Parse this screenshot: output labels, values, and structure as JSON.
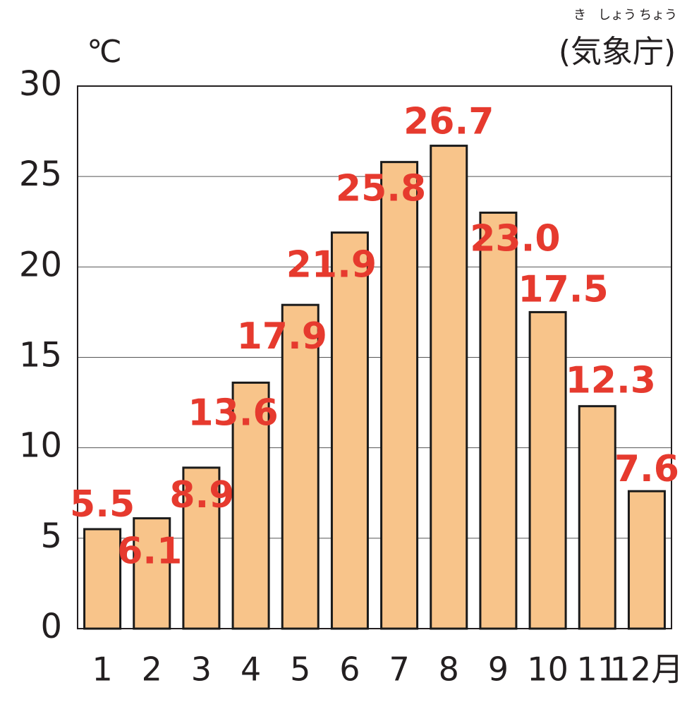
{
  "chart_data": {
    "type": "bar",
    "unit": "℃",
    "source": "(気象庁)",
    "source_ruby": [
      "き",
      "しょう",
      "ちょう"
    ],
    "categories": [
      "1",
      "2",
      "3",
      "4",
      "5",
      "6",
      "7",
      "8",
      "9",
      "10",
      "11",
      "12月"
    ],
    "values": [
      5.5,
      6.1,
      8.9,
      13.6,
      17.9,
      21.9,
      25.8,
      26.7,
      23.0,
      17.5,
      12.3,
      7.6
    ],
    "value_labels": [
      "5.5",
      "6.1",
      "8.9",
      "13.6",
      "17.9",
      "21.9",
      "25.8",
      "26.7",
      "23.0",
      "17.5",
      "12.3",
      "7.6"
    ],
    "color": "#f8c48a",
    "label_color": "#e63a2e",
    "ylim": [
      0,
      30
    ],
    "yticks": [
      0,
      5,
      10,
      15,
      20,
      25,
      30
    ],
    "grid": true
  }
}
